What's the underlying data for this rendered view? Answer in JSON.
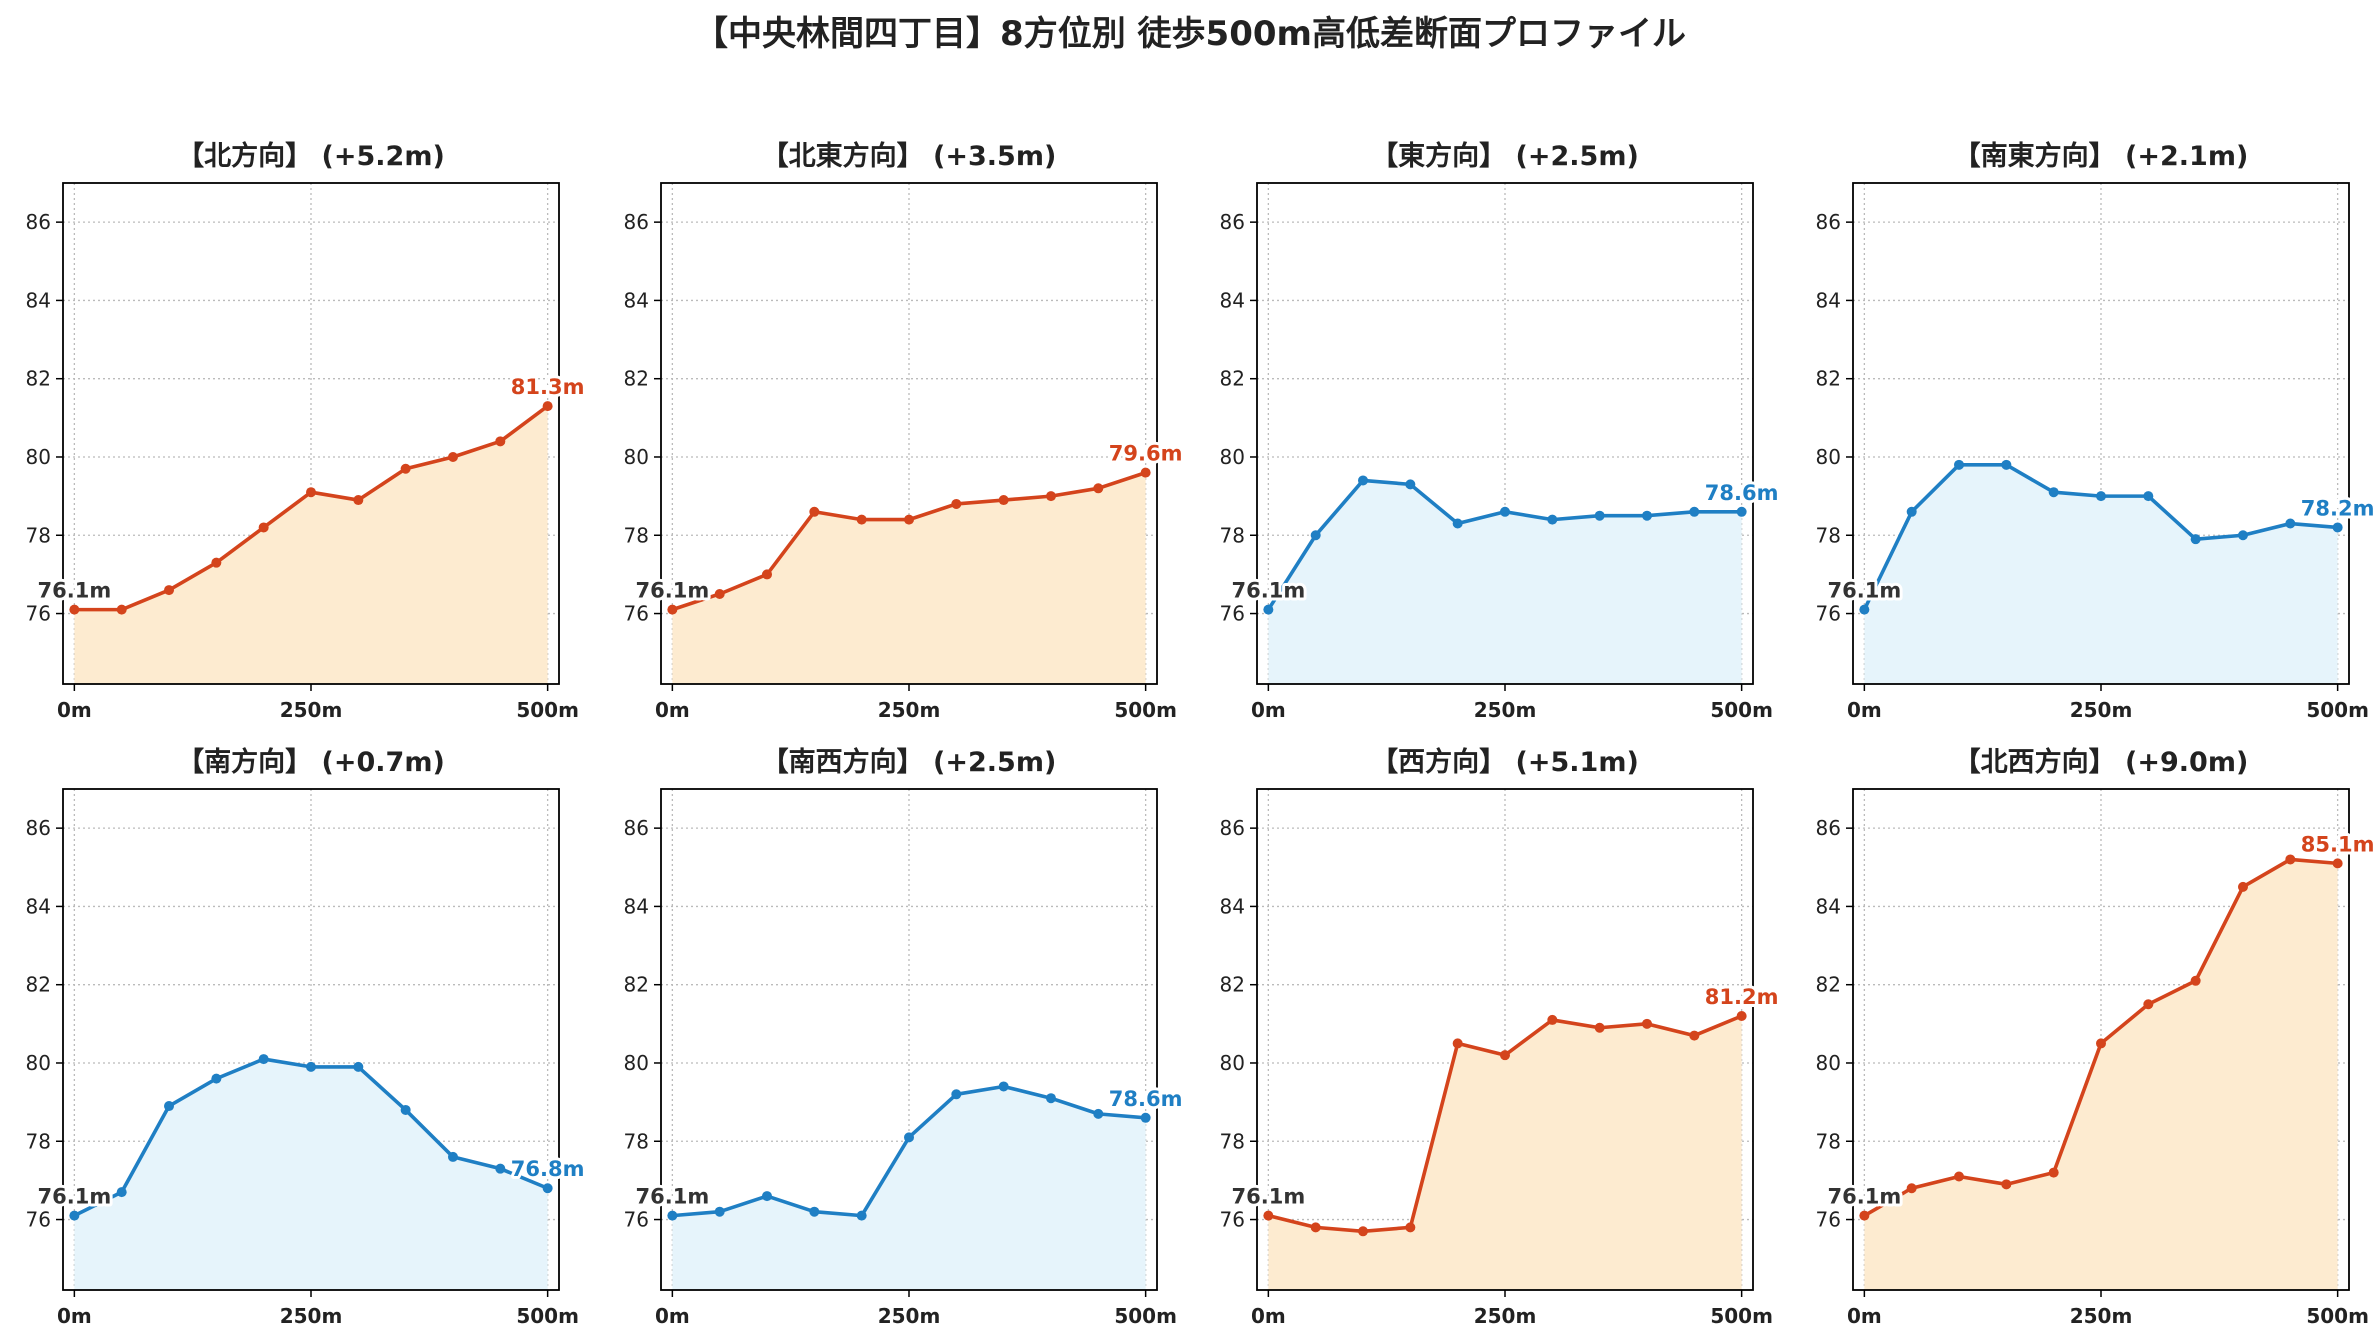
{
  "figure": {
    "title": "【中央林間四丁目】8方位別 徒歩500m高低差断面プロファイル"
  },
  "colors": {
    "up_line": "#d4441c",
    "up_fill": "#fdebd0",
    "flat_line": "#1f7fc4",
    "flat_fill": "#e6f4fb",
    "start_label": "#333333",
    "grid": "#bbbbbb"
  },
  "axes": {
    "x_ticks": [
      "0m",
      "250m",
      "500m"
    ],
    "x_tick_values": [
      0,
      250,
      500
    ],
    "y_ticks": [
      "76",
      "78",
      "80",
      "82",
      "84",
      "86"
    ],
    "y_tick_values": [
      76,
      78,
      80,
      82,
      84,
      86
    ],
    "xlim": [
      -12,
      512
    ],
    "ylim": [
      74.2,
      87.0
    ],
    "grid": "dotted"
  },
  "chart_data": [
    {
      "type": "area",
      "title": "【北方向】 (+5.2m)",
      "style": "up",
      "x": [
        0,
        50,
        100,
        150,
        200,
        250,
        300,
        350,
        400,
        450,
        500
      ],
      "y": [
        76.1,
        76.1,
        76.6,
        77.3,
        78.2,
        79.1,
        78.9,
        79.7,
        80.0,
        80.4,
        81.3
      ],
      "start_label": "76.1m",
      "end_label": "81.3m"
    },
    {
      "type": "area",
      "title": "【北東方向】 (+3.5m)",
      "style": "up",
      "x": [
        0,
        50,
        100,
        150,
        200,
        250,
        300,
        350,
        400,
        450,
        500
      ],
      "y": [
        76.1,
        76.5,
        77.0,
        78.6,
        78.4,
        78.4,
        78.8,
        78.9,
        79.0,
        79.2,
        79.6
      ],
      "start_label": "76.1m",
      "end_label": "79.6m"
    },
    {
      "type": "area",
      "title": "【東方向】 (+2.5m)",
      "style": "flat",
      "x": [
        0,
        50,
        100,
        150,
        200,
        250,
        300,
        350,
        400,
        450,
        500
      ],
      "y": [
        76.1,
        78.0,
        79.4,
        79.3,
        78.3,
        78.6,
        78.4,
        78.5,
        78.5,
        78.6,
        78.6
      ],
      "start_label": "76.1m",
      "end_label": "78.6m"
    },
    {
      "type": "area",
      "title": "【南東方向】 (+2.1m)",
      "style": "flat",
      "x": [
        0,
        50,
        100,
        150,
        200,
        250,
        300,
        350,
        400,
        450,
        500
      ],
      "y": [
        76.1,
        78.6,
        79.8,
        79.8,
        79.1,
        79.0,
        79.0,
        77.9,
        78.0,
        78.3,
        78.2
      ],
      "start_label": "76.1m",
      "end_label": "78.2m"
    },
    {
      "type": "area",
      "title": "【南方向】 (+0.7m)",
      "style": "flat",
      "x": [
        0,
        50,
        100,
        150,
        200,
        250,
        300,
        350,
        400,
        450,
        500
      ],
      "y": [
        76.1,
        76.7,
        78.9,
        79.6,
        80.1,
        79.9,
        79.9,
        78.8,
        77.6,
        77.3,
        76.8
      ],
      "start_label": "76.1m",
      "end_label": "76.8m"
    },
    {
      "type": "area",
      "title": "【南西方向】 (+2.5m)",
      "style": "flat",
      "x": [
        0,
        50,
        100,
        150,
        200,
        250,
        300,
        350,
        400,
        450,
        500
      ],
      "y": [
        76.1,
        76.2,
        76.6,
        76.2,
        76.1,
        78.1,
        79.2,
        79.4,
        79.1,
        78.7,
        78.6
      ],
      "start_label": "76.1m",
      "end_label": "78.6m"
    },
    {
      "type": "area",
      "title": "【西方向】 (+5.1m)",
      "style": "up",
      "x": [
        0,
        50,
        100,
        150,
        200,
        250,
        300,
        350,
        400,
        450,
        500
      ],
      "y": [
        76.1,
        75.8,
        75.7,
        75.8,
        80.5,
        80.2,
        81.1,
        80.9,
        81.0,
        80.7,
        81.2
      ],
      "start_label": "76.1m",
      "end_label": "81.2m"
    },
    {
      "type": "area",
      "title": "【北西方向】 (+9.0m)",
      "style": "up",
      "x": [
        0,
        50,
        100,
        150,
        200,
        250,
        300,
        350,
        400,
        450,
        500
      ],
      "y": [
        76.1,
        76.8,
        77.1,
        76.9,
        77.2,
        80.5,
        81.5,
        82.1,
        84.5,
        85.2,
        85.1
      ],
      "start_label": "76.1m",
      "end_label": "85.1m"
    }
  ]
}
